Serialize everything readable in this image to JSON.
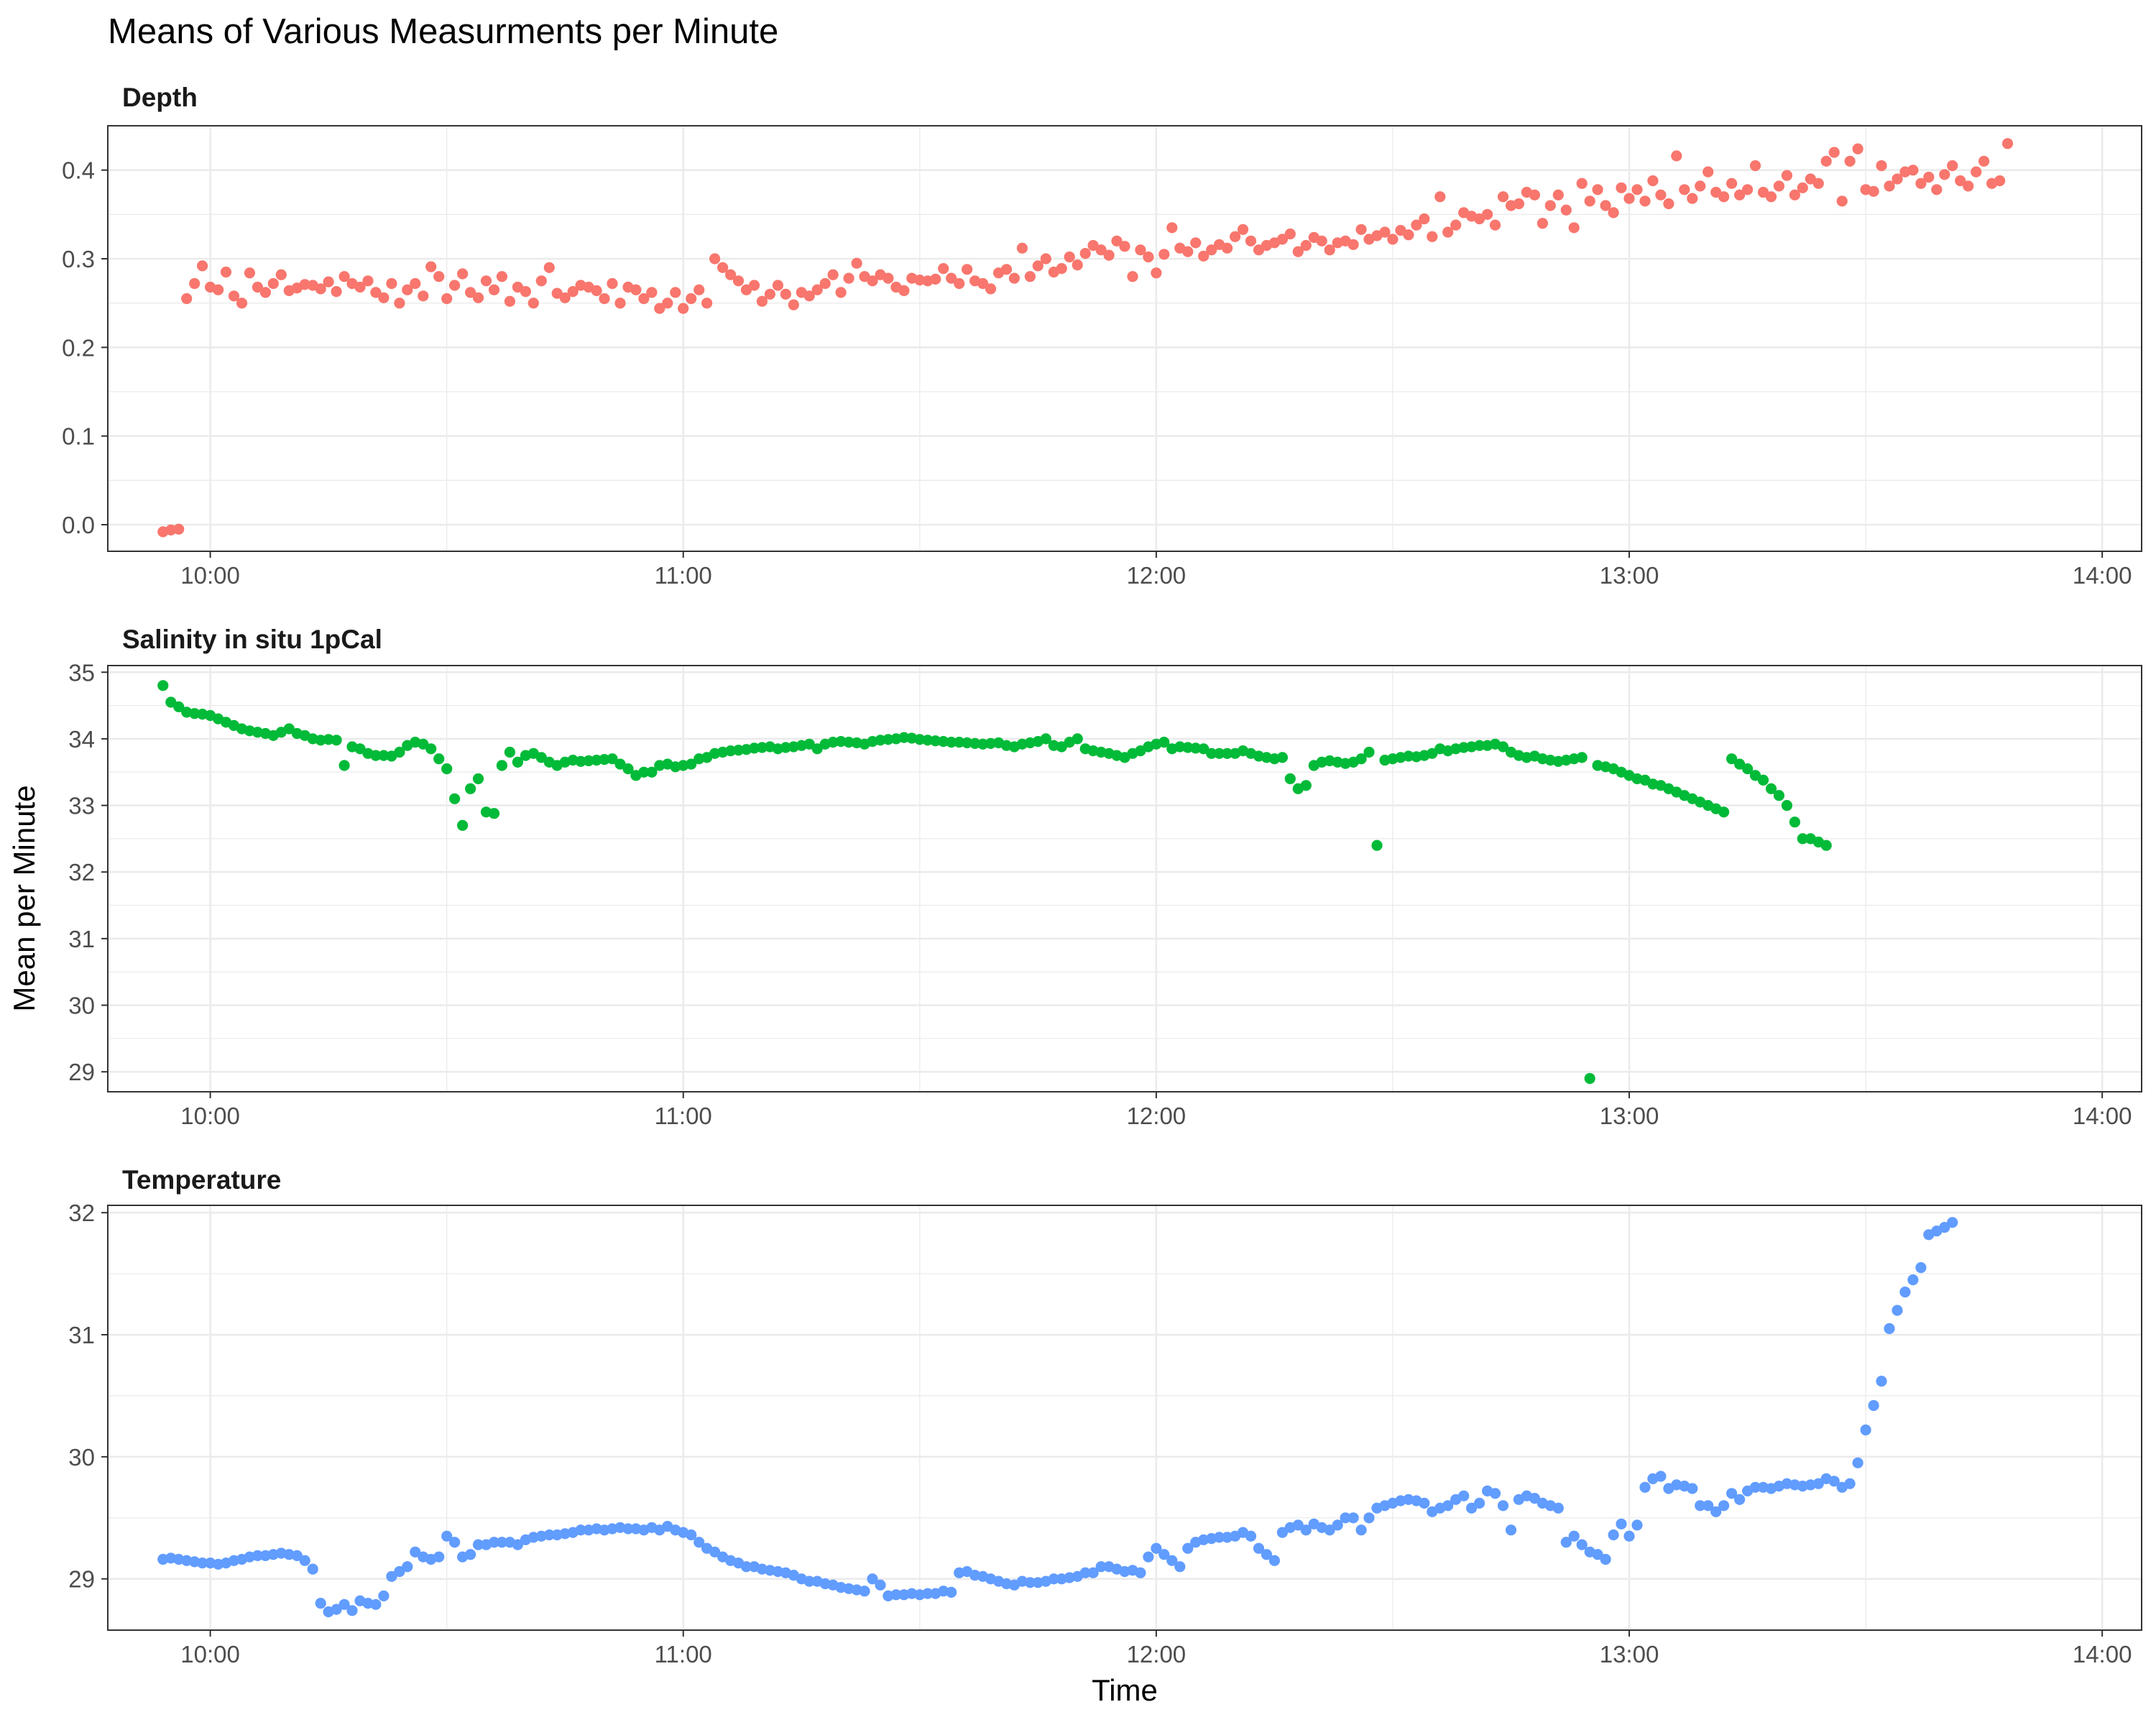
{
  "chart_data": {
    "type": "scatter",
    "title": "Means of Various Measurments per Minute",
    "xlabel": "Time",
    "ylabel": "Mean per Minute",
    "x_ticks": [
      "10:00",
      "11:00",
      "12:00",
      "13:00",
      "14:00"
    ],
    "grid": true,
    "legend": "none",
    "panels": [
      {
        "name": "Depth",
        "color": "#F8766D",
        "ylim": [
          -0.03,
          0.45
        ],
        "y_ticks": [
          "0.0",
          "0.1",
          "0.2",
          "0.3",
          "0.4"
        ],
        "x_start": "09:54",
        "points_per_minute": 1,
        "values": [
          -0.008,
          -0.006,
          -0.005,
          0.255,
          0.272,
          0.292,
          0.268,
          0.265,
          0.285,
          0.258,
          0.25,
          0.284,
          0.268,
          0.262,
          0.272,
          0.282,
          0.264,
          0.267,
          0.271,
          0.27,
          0.266,
          0.274,
          0.263,
          0.28,
          0.272,
          0.268,
          0.275,
          0.262,
          0.256,
          0.272,
          0.25,
          0.265,
          0.272,
          0.258,
          0.291,
          0.28,
          0.255,
          0.27,
          0.283,
          0.262,
          0.256,
          0.275,
          0.265,
          0.28,
          0.252,
          0.268,
          0.263,
          0.25,
          0.275,
          0.29,
          0.261,
          0.256,
          0.263,
          0.27,
          0.268,
          0.264,
          0.255,
          0.272,
          0.25,
          0.268,
          0.265,
          0.255,
          0.262,
          0.244,
          0.25,
          0.262,
          0.244,
          0.255,
          0.265,
          0.25,
          0.3,
          0.29,
          0.282,
          0.275,
          0.265,
          0.27,
          0.252,
          0.26,
          0.27,
          0.26,
          0.248,
          0.262,
          0.258,
          0.265,
          0.272,
          0.282,
          0.262,
          0.278,
          0.295,
          0.28,
          0.275,
          0.282,
          0.278,
          0.268,
          0.264,
          0.278,
          0.276,
          0.275,
          0.277,
          0.289,
          0.278,
          0.272,
          0.288,
          0.275,
          0.272,
          0.266,
          0.284,
          0.288,
          0.278,
          0.312,
          0.28,
          0.292,
          0.3,
          0.285,
          0.289,
          0.302,
          0.293,
          0.306,
          0.315,
          0.31,
          0.304,
          0.32,
          0.314,
          0.28,
          0.31,
          0.302,
          0.284,
          0.305,
          0.335,
          0.312,
          0.308,
          0.318,
          0.303,
          0.31,
          0.316,
          0.312,
          0.325,
          0.333,
          0.32,
          0.31,
          0.315,
          0.318,
          0.322,
          0.328,
          0.308,
          0.315,
          0.324,
          0.32,
          0.31,
          0.318,
          0.32,
          0.316,
          0.333,
          0.322,
          0.326,
          0.33,
          0.322,
          0.332,
          0.327,
          0.338,
          0.345,
          0.325,
          0.37,
          0.33,
          0.338,
          0.352,
          0.348,
          0.345,
          0.35,
          0.338,
          0.37,
          0.36,
          0.362,
          0.375,
          0.372,
          0.34,
          0.36,
          0.372,
          0.355,
          0.335,
          0.385,
          0.365,
          0.378,
          0.36,
          0.352,
          0.38,
          0.368,
          0.378,
          0.365,
          0.388,
          0.372,
          0.362,
          0.416,
          0.378,
          0.368,
          0.382,
          0.398,
          0.375,
          0.37,
          0.385,
          0.372,
          0.378,
          0.405,
          0.375,
          0.37,
          0.382,
          0.394,
          0.372,
          0.38,
          0.39,
          0.385,
          0.41,
          0.42,
          0.365,
          0.41,
          0.424,
          0.378,
          0.376,
          0.405,
          0.382,
          0.39,
          0.398,
          0.4,
          0.385,
          0.392,
          0.378,
          0.395,
          0.405,
          0.388,
          0.382,
          0.398,
          0.41,
          0.385,
          0.388,
          0.43
        ]
      },
      {
        "name": "Salinity in situ 1pCal",
        "color": "#00BA38",
        "ylim": [
          28.7,
          35.1
        ],
        "y_ticks": [
          "29",
          "30",
          "31",
          "32",
          "33",
          "34",
          "35"
        ],
        "x_start": "09:54",
        "points_per_minute": 1,
        "values": [
          34.8,
          34.55,
          34.48,
          34.4,
          34.38,
          34.37,
          34.35,
          34.3,
          34.25,
          34.2,
          34.15,
          34.12,
          34.1,
          34.08,
          34.05,
          34.1,
          34.15,
          34.08,
          34.05,
          34.0,
          33.98,
          33.99,
          33.98,
          33.6,
          33.88,
          33.85,
          33.78,
          33.75,
          33.75,
          33.74,
          33.8,
          33.9,
          33.95,
          33.92,
          33.85,
          33.7,
          33.55,
          33.1,
          32.7,
          33.25,
          33.4,
          32.9,
          32.88,
          33.6,
          33.8,
          33.65,
          33.75,
          33.78,
          33.72,
          33.65,
          33.6,
          33.65,
          33.68,
          33.66,
          33.67,
          33.68,
          33.69,
          33.7,
          33.62,
          33.55,
          33.45,
          33.5,
          33.5,
          33.6,
          33.62,
          33.58,
          33.6,
          33.62,
          33.7,
          33.72,
          33.78,
          33.8,
          33.82,
          33.83,
          33.84,
          33.86,
          33.87,
          33.88,
          33.85,
          33.87,
          33.88,
          33.9,
          33.92,
          33.85,
          33.92,
          33.95,
          33.96,
          33.95,
          33.94,
          33.92,
          33.96,
          33.98,
          33.99,
          34.0,
          34.02,
          34.01,
          33.99,
          33.98,
          33.97,
          33.96,
          33.95,
          33.95,
          33.94,
          33.93,
          33.92,
          33.93,
          33.94,
          33.9,
          33.88,
          33.92,
          33.94,
          33.96,
          34.0,
          33.9,
          33.88,
          33.95,
          34.0,
          33.85,
          33.82,
          33.8,
          33.78,
          33.75,
          33.72,
          33.78,
          33.82,
          33.88,
          33.92,
          33.95,
          33.85,
          33.88,
          33.87,
          33.86,
          33.85,
          33.78,
          33.78,
          33.78,
          33.78,
          33.82,
          33.78,
          33.74,
          33.72,
          33.7,
          33.72,
          33.4,
          33.25,
          33.3,
          33.6,
          33.65,
          33.67,
          33.65,
          33.63,
          33.65,
          33.7,
          33.8,
          32.4,
          33.68,
          33.7,
          33.72,
          33.74,
          33.73,
          33.75,
          33.78,
          33.85,
          33.82,
          33.85,
          33.87,
          33.88,
          33.9,
          33.9,
          33.92,
          33.88,
          33.8,
          33.75,
          33.72,
          33.74,
          33.7,
          33.68,
          33.66,
          33.68,
          33.7,
          33.72,
          28.9,
          33.6,
          33.58,
          33.55,
          33.5,
          33.45,
          33.4,
          33.38,
          33.32,
          33.3,
          33.25,
          33.2,
          33.15,
          33.1,
          33.05,
          33.0,
          32.95,
          32.9,
          33.7,
          33.62,
          33.55,
          33.45,
          33.38,
          33.25,
          33.15,
          33.0,
          32.75,
          32.5,
          32.5,
          32.45,
          32.4
        ]
      },
      {
        "name": "Temperature",
        "color": "#619CFF",
        "ylim": [
          28.58,
          32.06
        ],
        "y_ticks": [
          "29",
          "30",
          "31",
          "32"
        ],
        "x_start": "09:54",
        "points_per_minute": 1,
        "values": [
          29.16,
          29.17,
          29.16,
          29.15,
          29.14,
          29.13,
          29.13,
          29.12,
          29.13,
          29.15,
          29.16,
          29.18,
          29.19,
          29.19,
          29.2,
          29.21,
          29.2,
          29.19,
          29.15,
          29.08,
          28.8,
          28.73,
          28.75,
          28.79,
          28.74,
          28.82,
          28.8,
          28.79,
          28.86,
          29.02,
          29.06,
          29.1,
          29.22,
          29.18,
          29.16,
          29.18,
          29.35,
          29.3,
          29.18,
          29.2,
          29.28,
          29.28,
          29.3,
          29.3,
          29.3,
          29.28,
          29.32,
          29.34,
          29.35,
          29.36,
          29.36,
          29.37,
          29.38,
          29.4,
          29.4,
          29.41,
          29.4,
          29.41,
          29.42,
          29.41,
          29.41,
          29.4,
          29.42,
          29.4,
          29.43,
          29.4,
          29.38,
          29.36,
          29.3,
          29.25,
          29.22,
          29.18,
          29.15,
          29.13,
          29.1,
          29.1,
          29.08,
          29.07,
          29.06,
          29.05,
          29.03,
          29.0,
          28.98,
          28.98,
          28.96,
          28.95,
          28.93,
          28.92,
          28.91,
          28.9,
          29.0,
          28.95,
          28.86,
          28.87,
          28.87,
          28.88,
          28.87,
          28.88,
          28.88,
          28.9,
          28.89,
          29.05,
          29.06,
          29.03,
          29.02,
          29.0,
          28.98,
          28.96,
          28.95,
          28.98,
          28.97,
          28.97,
          28.98,
          29.0,
          29.0,
          29.01,
          29.02,
          29.05,
          29.05,
          29.1,
          29.1,
          29.08,
          29.06,
          29.07,
          29.05,
          29.18,
          29.25,
          29.2,
          29.15,
          29.1,
          29.25,
          29.3,
          29.32,
          29.33,
          29.34,
          29.34,
          29.35,
          29.38,
          29.35,
          29.25,
          29.2,
          29.15,
          29.38,
          29.42,
          29.44,
          29.4,
          29.45,
          29.42,
          29.4,
          29.44,
          29.5,
          29.5,
          29.4,
          29.5,
          29.58,
          29.6,
          29.62,
          29.64,
          29.65,
          29.64,
          29.62,
          29.55,
          29.58,
          29.6,
          29.65,
          29.68,
          29.58,
          29.62,
          29.72,
          29.7,
          29.6,
          29.4,
          29.65,
          29.68,
          29.66,
          29.62,
          29.6,
          29.58,
          29.3,
          29.35,
          29.28,
          29.22,
          29.2,
          29.16,
          29.36,
          29.45,
          29.35,
          29.44,
          29.75,
          29.82,
          29.84,
          29.74,
          29.77,
          29.76,
          29.74,
          29.6,
          29.6,
          29.55,
          29.6,
          29.7,
          29.65,
          29.72,
          29.75,
          29.75,
          29.74,
          29.76,
          29.78,
          29.77,
          29.76,
          29.77,
          29.78,
          29.82,
          29.8,
          29.75,
          29.78,
          29.95,
          30.22,
          30.42,
          30.62,
          31.05,
          31.2,
          31.35,
          31.45,
          31.55,
          31.82,
          31.85,
          31.88,
          31.92
        ]
      }
    ]
  }
}
